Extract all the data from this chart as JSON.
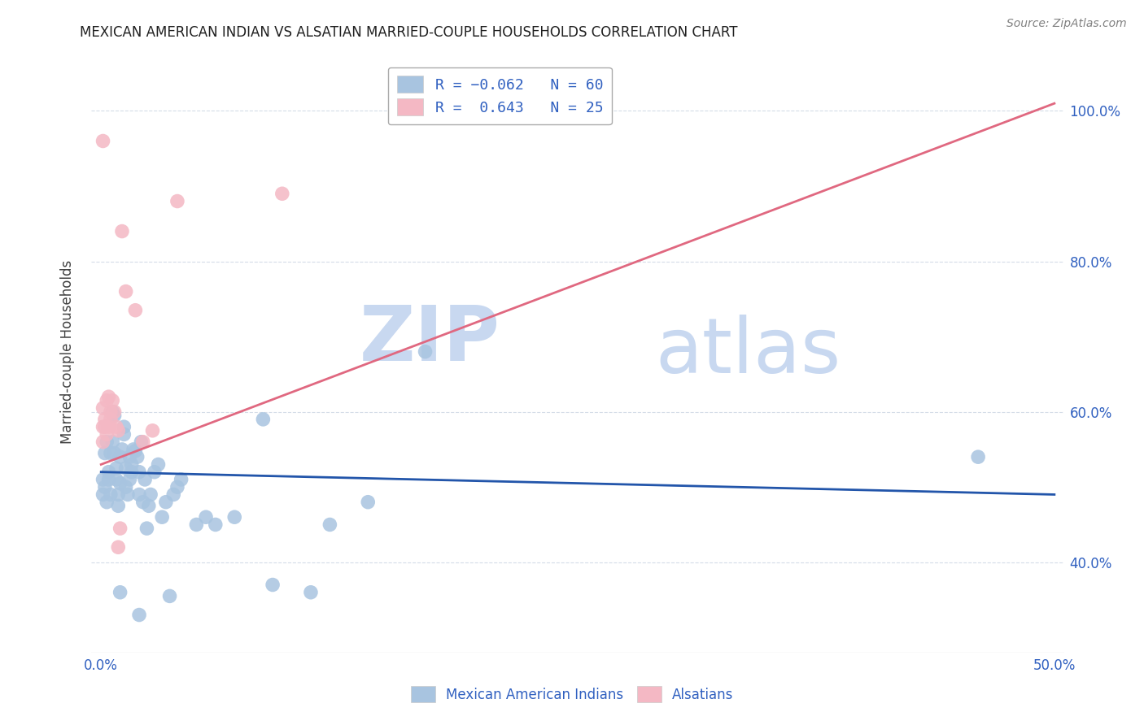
{
  "title": "MEXICAN AMERICAN INDIAN VS ALSATIAN MARRIED-COUPLE HOUSEHOLDS CORRELATION CHART",
  "source": "Source: ZipAtlas.com",
  "xlabel_ticks": [
    "0.0%",
    "",
    "",
    "",
    "",
    "",
    "",
    "",
    "",
    "50.0%"
  ],
  "xlabel_vals": [
    0.0,
    0.05,
    0.1,
    0.15,
    0.2,
    0.25,
    0.3,
    0.35,
    0.4,
    0.5
  ],
  "ylabel_left": "Married-couple Households",
  "ylabel_ticks": [
    "40.0%",
    "60.0%",
    "80.0%",
    "100.0%"
  ],
  "ylabel_vals": [
    0.4,
    0.6,
    0.8,
    1.0
  ],
  "xlim": [
    -0.005,
    0.505
  ],
  "ylim": [
    0.28,
    1.08
  ],
  "blue_color": "#a8c4e0",
  "pink_color": "#f4b8c4",
  "blue_line_color": "#2255aa",
  "pink_line_color": "#e06880",
  "watermark_zip": "ZIP",
  "watermark_atlas": "atlas",
  "watermark_color": "#c8d8f0",
  "blue_line_x0": 0.0,
  "blue_line_y0": 0.52,
  "blue_line_x1": 0.5,
  "blue_line_y1": 0.49,
  "pink_line_x0": 0.0,
  "pink_line_y0": 0.53,
  "pink_line_x1": 0.5,
  "pink_line_y1": 1.01,
  "grid_color": "#d4dce8",
  "background_color": "#ffffff",
  "blue_dots": [
    [
      0.001,
      0.49
    ],
    [
      0.001,
      0.51
    ],
    [
      0.002,
      0.5
    ],
    [
      0.002,
      0.545
    ],
    [
      0.003,
      0.56
    ],
    [
      0.003,
      0.48
    ],
    [
      0.004,
      0.52
    ],
    [
      0.004,
      0.51
    ],
    [
      0.005,
      0.49
    ],
    [
      0.005,
      0.545
    ],
    [
      0.006,
      0.56
    ],
    [
      0.006,
      0.6
    ],
    [
      0.007,
      0.595
    ],
    [
      0.007,
      0.545
    ],
    [
      0.008,
      0.525
    ],
    [
      0.008,
      0.51
    ],
    [
      0.009,
      0.49
    ],
    [
      0.009,
      0.475
    ],
    [
      0.01,
      0.505
    ],
    [
      0.01,
      0.54
    ],
    [
      0.011,
      0.55
    ],
    [
      0.012,
      0.58
    ],
    [
      0.012,
      0.57
    ],
    [
      0.013,
      0.525
    ],
    [
      0.013,
      0.5
    ],
    [
      0.014,
      0.49
    ],
    [
      0.015,
      0.51
    ],
    [
      0.015,
      0.54
    ],
    [
      0.016,
      0.53
    ],
    [
      0.016,
      0.52
    ],
    [
      0.017,
      0.55
    ],
    [
      0.018,
      0.548
    ],
    [
      0.019,
      0.54
    ],
    [
      0.02,
      0.49
    ],
    [
      0.02,
      0.52
    ],
    [
      0.021,
      0.56
    ],
    [
      0.022,
      0.48
    ],
    [
      0.023,
      0.51
    ],
    [
      0.024,
      0.445
    ],
    [
      0.025,
      0.475
    ],
    [
      0.026,
      0.49
    ],
    [
      0.028,
      0.52
    ],
    [
      0.03,
      0.53
    ],
    [
      0.032,
      0.46
    ],
    [
      0.034,
      0.48
    ],
    [
      0.036,
      0.355
    ],
    [
      0.038,
      0.49
    ],
    [
      0.04,
      0.5
    ],
    [
      0.042,
      0.51
    ],
    [
      0.05,
      0.45
    ],
    [
      0.055,
      0.46
    ],
    [
      0.06,
      0.45
    ],
    [
      0.07,
      0.46
    ],
    [
      0.085,
      0.59
    ],
    [
      0.09,
      0.37
    ],
    [
      0.11,
      0.36
    ],
    [
      0.12,
      0.45
    ],
    [
      0.14,
      0.48
    ],
    [
      0.17,
      0.68
    ],
    [
      0.46,
      0.54
    ],
    [
      0.01,
      0.36
    ],
    [
      0.02,
      0.33
    ]
  ],
  "pink_dots": [
    [
      0.001,
      0.58
    ],
    [
      0.001,
      0.56
    ],
    [
      0.001,
      0.605
    ],
    [
      0.002,
      0.59
    ],
    [
      0.002,
      0.58
    ],
    [
      0.003,
      0.57
    ],
    [
      0.003,
      0.615
    ],
    [
      0.004,
      0.62
    ],
    [
      0.004,
      0.58
    ],
    [
      0.005,
      0.6
    ],
    [
      0.005,
      0.59
    ],
    [
      0.006,
      0.615
    ],
    [
      0.007,
      0.6
    ],
    [
      0.008,
      0.58
    ],
    [
      0.009,
      0.575
    ],
    [
      0.009,
      0.42
    ],
    [
      0.01,
      0.445
    ],
    [
      0.011,
      0.84
    ],
    [
      0.013,
      0.76
    ],
    [
      0.018,
      0.735
    ],
    [
      0.022,
      0.56
    ],
    [
      0.027,
      0.575
    ],
    [
      0.04,
      0.88
    ],
    [
      0.095,
      0.89
    ],
    [
      0.001,
      0.96
    ]
  ]
}
